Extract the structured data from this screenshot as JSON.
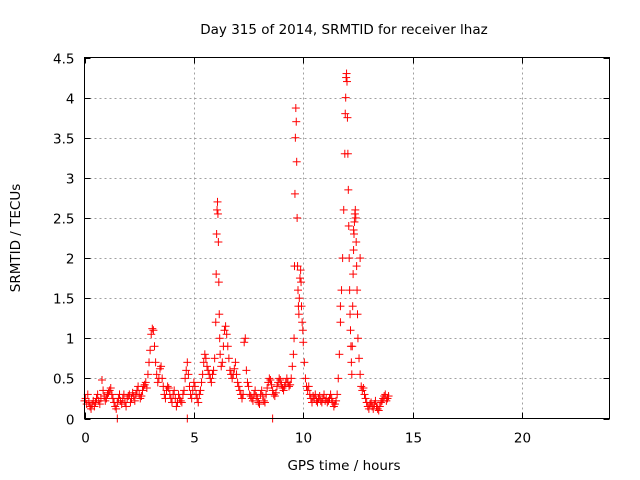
{
  "chart_data": {
    "type": "scatter",
    "title": "Day 315 of 2014, SRMTID for receiver lhaz",
    "xlabel": "GPS time / hours",
    "ylabel": "SRMTID / TECUs",
    "xlim": [
      0,
      24
    ],
    "ylim": [
      0,
      4.5
    ],
    "x_ticks": [
      0,
      5,
      10,
      15,
      20
    ],
    "y_ticks": [
      0,
      0.5,
      1,
      1.5,
      2,
      2.5,
      3,
      3.5,
      4,
      4.5
    ],
    "y_tick_labels": [
      "0",
      "0.5",
      "1",
      "1.5",
      "2",
      "2.5",
      "3",
      "3.5",
      "4",
      "4.5"
    ],
    "grid": true,
    "marker": "+",
    "marker_color": "#ff0000",
    "series": [
      {
        "x": [
          0.0,
          0.05,
          0.1,
          0.15,
          0.2,
          0.25,
          0.3,
          0.35,
          0.4,
          0.45,
          0.5,
          0.55,
          0.6,
          0.65,
          0.7,
          0.75,
          0.8,
          0.85,
          0.9,
          0.95,
          1.0,
          1.05,
          1.1,
          1.15,
          1.2,
          1.25,
          1.3,
          1.35,
          1.4,
          1.45,
          1.5,
          1.55,
          1.6,
          1.65,
          1.7,
          1.75,
          1.8,
          1.85,
          1.9,
          1.95,
          2.0,
          2.05,
          2.1,
          2.15,
          2.2,
          2.25,
          2.3,
          2.35,
          2.4,
          2.45,
          2.5,
          2.55,
          2.6,
          2.65,
          2.7,
          2.75,
          2.8,
          2.85,
          2.9,
          2.95,
          3.0,
          3.05,
          3.1,
          3.15,
          3.2,
          3.25,
          3.3,
          3.35,
          3.4,
          3.45,
          3.5,
          3.55,
          3.6,
          3.65,
          3.7,
          3.75,
          3.8,
          3.85,
          3.9,
          3.95,
          4.0,
          4.05,
          4.1,
          4.15,
          4.2,
          4.25,
          4.3,
          4.35,
          4.4,
          4.45,
          4.5,
          4.55,
          4.6,
          4.65,
          4.7,
          4.75,
          4.8,
          4.85,
          4.9,
          4.95,
          5.0,
          5.05,
          5.1,
          5.15,
          5.2,
          5.25,
          5.3,
          5.35,
          5.4,
          5.45,
          5.5,
          5.55,
          5.6,
          5.65,
          5.7,
          5.75,
          5.8,
          5.85,
          5.9,
          5.95,
          6.0,
          6.02,
          6.04,
          6.06,
          6.08,
          6.1,
          6.12,
          6.14,
          6.16,
          6.18,
          6.2,
          6.25,
          6.3,
          6.35,
          6.4,
          6.45,
          6.5,
          6.55,
          6.6,
          6.65,
          6.7,
          6.75,
          6.8,
          6.85,
          6.9,
          6.95,
          7.0,
          7.05,
          7.1,
          7.15,
          7.2,
          7.25,
          7.3,
          7.35,
          7.4,
          7.45,
          7.5,
          7.55,
          7.6,
          7.65,
          7.7,
          7.75,
          7.8,
          7.85,
          7.9,
          7.95,
          8.0,
          8.05,
          8.1,
          8.15,
          8.2,
          8.25,
          8.3,
          8.35,
          8.4,
          8.45,
          8.5,
          8.55,
          8.6,
          8.65,
          8.7,
          8.75,
          8.8,
          8.85,
          8.9,
          8.95,
          9.0,
          9.05,
          9.1,
          9.15,
          9.2,
          9.25,
          9.3,
          9.35,
          9.4,
          9.45,
          9.5,
          9.55,
          9.58,
          9.6,
          9.62,
          9.64,
          9.66,
          9.68,
          9.7,
          9.72,
          9.74,
          9.76,
          9.78,
          9.8,
          9.82,
          9.85,
          9.88,
          9.9,
          9.92,
          9.95,
          9.98,
          10.0,
          10.05,
          10.1,
          10.15,
          10.2,
          10.25,
          10.3,
          10.35,
          10.4,
          10.45,
          10.5,
          10.55,
          10.6,
          10.65,
          10.7,
          10.75,
          10.8,
          10.85,
          10.9,
          10.95,
          11.0,
          11.05,
          11.1,
          11.15,
          11.2,
          11.25,
          11.3,
          11.35,
          11.4,
          11.45,
          11.5,
          11.55,
          11.6,
          11.65,
          11.7,
          11.75,
          11.8,
          11.85,
          11.9,
          11.92,
          11.94,
          11.96,
          11.98,
          12.0,
          12.02,
          12.04,
          12.06,
          12.08,
          12.1,
          12.12,
          12.14,
          12.16,
          12.18,
          12.2,
          12.22,
          12.24,
          12.26,
          12.28,
          12.3,
          12.32,
          12.34,
          12.36,
          12.38,
          12.4,
          12.42,
          12.44,
          12.46,
          12.48,
          12.5,
          12.55,
          12.6,
          12.65,
          12.7,
          12.75,
          12.8,
          12.85,
          12.9,
          12.95,
          13.0,
          13.05,
          13.1,
          13.15,
          13.2,
          13.25,
          13.3,
          13.35,
          13.4,
          13.45,
          13.5,
          13.55,
          13.6,
          13.65,
          13.7,
          13.75,
          13.8,
          13.85,
          13.9,
          1.5,
          4.7,
          8.6,
          11.7,
          12.6,
          12.3
        ],
        "y": [
          0.22,
          0.25,
          0.18,
          0.3,
          0.2,
          0.15,
          0.12,
          0.18,
          0.22,
          0.15,
          0.2,
          0.25,
          0.3,
          0.22,
          0.18,
          0.25,
          0.48,
          0.35,
          0.28,
          0.22,
          0.25,
          0.3,
          0.32,
          0.35,
          0.38,
          0.3,
          0.25,
          0.2,
          0.15,
          0.12,
          0.2,
          0.25,
          0.3,
          0.22,
          0.18,
          0.25,
          0.3,
          0.2,
          0.15,
          0.25,
          0.28,
          0.3,
          0.2,
          0.25,
          0.32,
          0.28,
          0.22,
          0.3,
          0.35,
          0.4,
          0.3,
          0.25,
          0.28,
          0.35,
          0.4,
          0.42,
          0.45,
          0.38,
          0.55,
          0.7,
          0.85,
          1.05,
          1.12,
          1.1,
          0.9,
          0.7,
          0.55,
          0.45,
          0.5,
          0.62,
          0.65,
          0.5,
          0.4,
          0.3,
          0.25,
          0.35,
          0.4,
          0.38,
          0.3,
          0.25,
          0.2,
          0.3,
          0.35,
          0.25,
          0.15,
          0.2,
          0.3,
          0.25,
          0.22,
          0.2,
          0.3,
          0.35,
          0.5,
          0.6,
          0.7,
          0.55,
          0.4,
          0.3,
          0.25,
          0.35,
          0.45,
          0.4,
          0.3,
          0.25,
          0.2,
          0.3,
          0.35,
          0.45,
          0.55,
          0.7,
          0.8,
          0.75,
          0.65,
          0.6,
          0.55,
          0.5,
          0.45,
          0.55,
          0.6,
          0.75,
          1.2,
          1.8,
          2.3,
          2.6,
          2.7,
          2.55,
          2.2,
          1.7,
          1.3,
          1.0,
          0.8,
          0.65,
          0.7,
          0.9,
          1.1,
          1.15,
          1.05,
          0.9,
          0.75,
          0.6,
          0.55,
          0.5,
          0.55,
          0.62,
          0.7,
          0.55,
          0.45,
          0.4,
          0.35,
          0.3,
          0.25,
          0.3,
          0.95,
          1.0,
          0.6,
          0.45,
          0.4,
          0.3,
          0.28,
          0.25,
          0.22,
          0.3,
          0.35,
          0.28,
          0.25,
          0.2,
          0.18,
          0.3,
          0.35,
          0.28,
          0.22,
          0.2,
          0.3,
          0.38,
          0.45,
          0.5,
          0.48,
          0.42,
          0.35,
          0.3,
          0.28,
          0.32,
          0.4,
          0.45,
          0.5,
          0.48,
          0.42,
          0.38,
          0.35,
          0.4,
          0.45,
          0.5,
          0.45,
          0.4,
          0.42,
          0.5,
          0.65,
          0.8,
          1.0,
          1.9,
          2.8,
          3.5,
          3.87,
          3.7,
          3.2,
          2.5,
          1.9,
          1.6,
          1.4,
          1.3,
          1.5,
          1.75,
          1.85,
          1.7,
          1.4,
          1.2,
          1.1,
          0.95,
          0.7,
          0.5,
          0.4,
          0.35,
          0.4,
          0.3,
          0.25,
          0.2,
          0.28,
          0.25,
          0.3,
          0.22,
          0.2,
          0.25,
          0.28,
          0.22,
          0.2,
          0.25,
          0.3,
          0.22,
          0.25,
          0.2,
          0.22,
          0.25,
          0.3,
          0.25,
          0.2,
          0.15,
          0.18,
          0.22,
          0.3,
          0.5,
          0.8,
          1.2,
          1.6,
          2.0,
          2.6,
          3.3,
          3.8,
          4.0,
          4.25,
          4.3,
          4.2,
          3.75,
          3.3,
          2.85,
          2.4,
          2.0,
          1.6,
          1.3,
          1.1,
          0.9,
          0.7,
          0.55,
          0.9,
          1.4,
          1.8,
          2.1,
          2.3,
          2.45,
          2.55,
          2.6,
          2.5,
          2.2,
          1.9,
          1.6,
          1.3,
          1.0,
          0.75,
          0.55,
          0.4,
          0.35,
          0.38,
          0.3,
          0.25,
          0.2,
          0.15,
          0.12,
          0.18,
          0.2,
          0.15,
          0.12,
          0.18,
          0.22,
          0.15,
          0.12,
          0.1,
          0.15,
          0.2,
          0.22,
          0.25,
          0.28,
          0.3,
          0.22,
          0.25,
          0.28,
          0.0,
          0.0,
          0.0,
          1.4,
          2.0,
          2.35
        ]
      }
    ]
  }
}
